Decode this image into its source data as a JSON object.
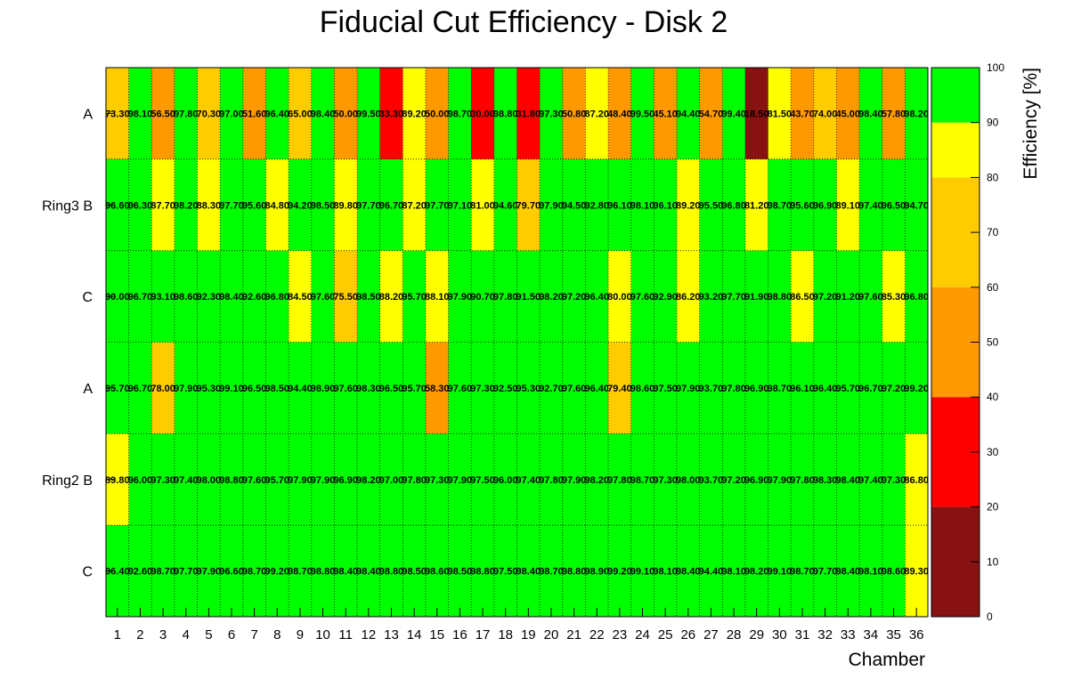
{
  "chart_data": {
    "type": "heatmap",
    "title": "Fiducial Cut Efficiency - Disk 2",
    "xlabel": "Chamber",
    "zlabel": "Efficiency [%]",
    "x_categories": [
      "1",
      "2",
      "3",
      "4",
      "5",
      "6",
      "7",
      "8",
      "9",
      "10",
      "11",
      "12",
      "13",
      "14",
      "15",
      "16",
      "17",
      "18",
      "19",
      "20",
      "21",
      "22",
      "23",
      "24",
      "25",
      "26",
      "27",
      "28",
      "29",
      "30",
      "31",
      "32",
      "33",
      "34",
      "35",
      "36"
    ],
    "y_tick_labels": [
      "A",
      "Ring3 B",
      "C",
      "A",
      "Ring2 B",
      "C"
    ],
    "zlim": [
      0,
      100
    ],
    "z_ticks": [
      0,
      10,
      20,
      30,
      40,
      50,
      60,
      70,
      80,
      90,
      100
    ],
    "color_bands": [
      {
        "from": 0,
        "to": 20,
        "color": "#881111"
      },
      {
        "from": 20,
        "to": 40,
        "color": "#ff0000"
      },
      {
        "from": 40,
        "to": 60,
        "color": "#ff9900"
      },
      {
        "from": 60,
        "to": 80,
        "color": "#ffcc00"
      },
      {
        "from": 80,
        "to": 90,
        "color": "#ffff00"
      },
      {
        "from": 90,
        "to": 100,
        "color": "#00ff00"
      }
    ],
    "grid": true,
    "rows": [
      {
        "label": "A",
        "values": [
          73.3,
          98.1,
          56.5,
          97.8,
          70.3,
          97.0,
          51.6,
          96.4,
          65.0,
          98.4,
          50.0,
          99.5,
          33.3,
          89.2,
          50.0,
          98.7,
          30.0,
          98.8,
          31.8,
          97.3,
          50.8,
          87.2,
          48.4,
          99.5,
          45.1,
          94.4,
          54.7,
          99.4,
          18.5,
          81.5,
          43.7,
          74.0,
          45.0,
          98.4,
          57.8,
          98.2
        ]
      },
      {
        "label": "B",
        "values": [
          96.6,
          96.3,
          87.7,
          98.2,
          88.3,
          97.7,
          95.6,
          84.8,
          94.2,
          98.5,
          89.8,
          97.7,
          96.7,
          87.2,
          97.7,
          97.1,
          81.0,
          94.6,
          79.7,
          97.9,
          94.5,
          92.8,
          96.1,
          98.1,
          96.1,
          89.2,
          95.5,
          96.8,
          81.2,
          98.7,
          95.6,
          96.9,
          89.1,
          97.4,
          96.5,
          94.7
        ]
      },
      {
        "label": "C",
        "values": [
          90.0,
          96.7,
          93.1,
          98.6,
          92.3,
          98.4,
          92.6,
          96.8,
          84.5,
          97.6,
          75.5,
          98.5,
          88.2,
          95.7,
          88.1,
          97.9,
          90.7,
          97.8,
          91.5,
          98.2,
          97.2,
          96.4,
          80.0,
          97.6,
          92.9,
          86.2,
          93.2,
          97.7,
          91.9,
          98.8,
          86.5,
          97.2,
          91.2,
          97.6,
          85.3,
          96.8
        ]
      },
      {
        "label": "A",
        "values": [
          95.7,
          96.7,
          78.0,
          97.9,
          95.3,
          99.1,
          96.5,
          98.5,
          94.4,
          98.9,
          97.6,
          98.3,
          96.5,
          95.7,
          58.3,
          97.6,
          97.3,
          92.5,
          95.3,
          92.7,
          97.6,
          96.4,
          79.4,
          98.6,
          97.5,
          97.9,
          93.7,
          97.8,
          96.9,
          98.7,
          96.1,
          96.4,
          95.7,
          96.7,
          97.2,
          99.2
        ]
      },
      {
        "label": "B",
        "values": [
          89.8,
          96.0,
          97.3,
          97.4,
          98.0,
          98.8,
          97.6,
          95.7,
          97.9,
          97.9,
          96.9,
          98.2,
          97.0,
          97.8,
          97.3,
          97.9,
          97.5,
          96.0,
          97.4,
          97.8,
          97.9,
          98.2,
          97.8,
          98.7,
          97.3,
          98.0,
          93.7,
          97.2,
          96.9,
          97.9,
          97.8,
          98.3,
          98.4,
          97.4,
          97.3,
          86.8
        ]
      },
      {
        "label": "C",
        "values": [
          96.4,
          92.6,
          98.7,
          97.7,
          97.9,
          96.6,
          98.7,
          99.2,
          98.7,
          98.8,
          98.4,
          98.4,
          98.8,
          98.5,
          98.6,
          98.5,
          98.8,
          97.5,
          98.4,
          98.7,
          98.8,
          98.9,
          99.2,
          99.1,
          98.1,
          98.4,
          94.4,
          98.1,
          98.2,
          99.1,
          98.7,
          97.7,
          98.4,
          98.1,
          98.6,
          89.3
        ]
      }
    ]
  }
}
